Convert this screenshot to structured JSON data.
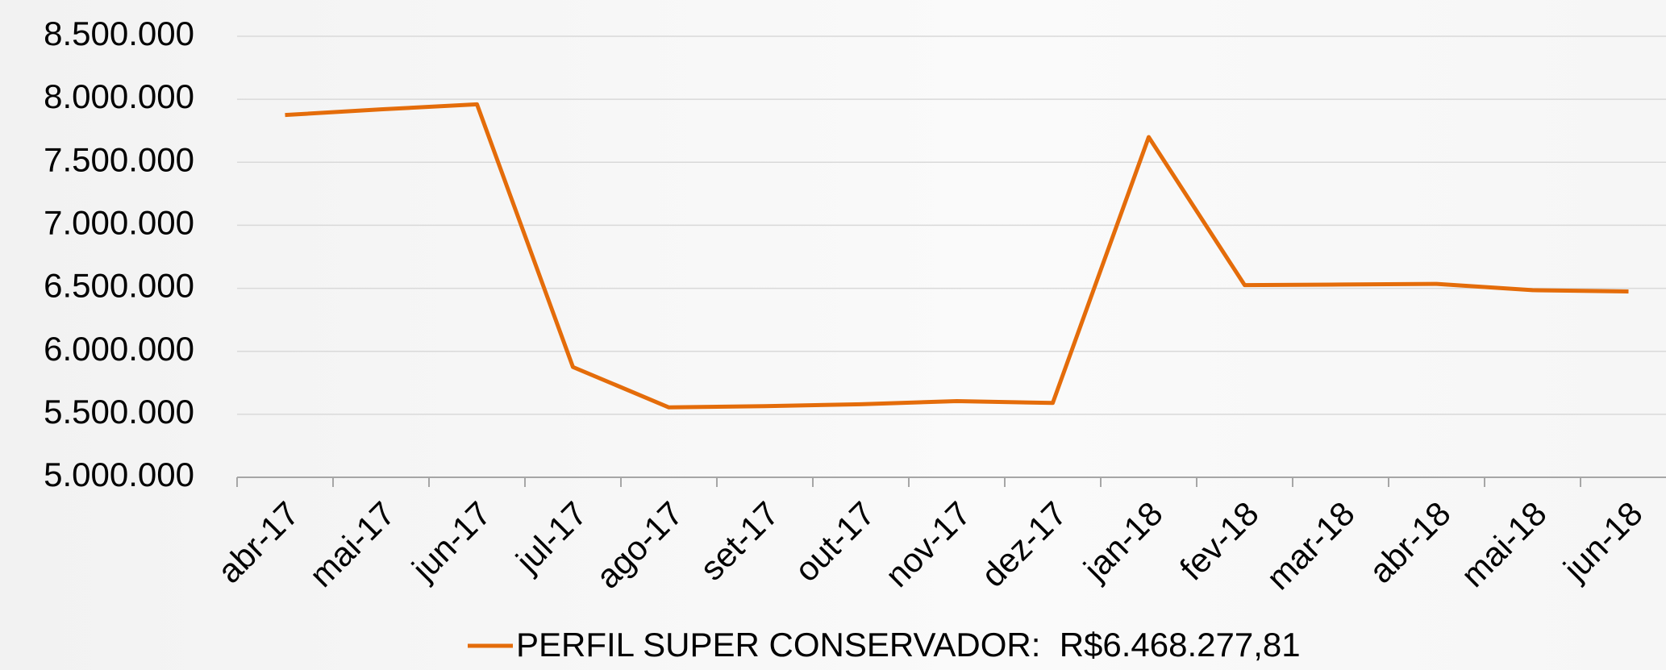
{
  "chart_data": {
    "type": "line",
    "categories": [
      "abr-17",
      "mai-17",
      "jun-17",
      "jul-17",
      "ago-17",
      "set-17",
      "out-17",
      "nov-17",
      "dez-17",
      "jan-18",
      "fev-18",
      "mar-18",
      "abr-18",
      "mai-18",
      "jun-18"
    ],
    "series": [
      {
        "name": "PERFIL SUPER CONSERVADOR:  R$6.468.277,81",
        "color": "#e46c0a",
        "values": [
          7875000,
          7920000,
          7960000,
          5875000,
          5555000,
          5565000,
          5580000,
          5605000,
          5590000,
          7700000,
          6525000,
          6530000,
          6535000,
          6485000,
          6475000
        ]
      }
    ],
    "ylim": [
      5000000,
      8500000
    ],
    "yticks": [
      {
        "value": 5000000,
        "label": "5.000.000"
      },
      {
        "value": 5500000,
        "label": "5.500.000"
      },
      {
        "value": 6000000,
        "label": "6.000.000"
      },
      {
        "value": 6500000,
        "label": "6.500.000"
      },
      {
        "value": 7000000,
        "label": "7.000.000"
      },
      {
        "value": 7500000,
        "label": "7.500.000"
      },
      {
        "value": 8000000,
        "label": "8.000.000"
      },
      {
        "value": 8500000,
        "label": "8.500.000"
      }
    ],
    "grid": true,
    "legend": "bottom"
  }
}
